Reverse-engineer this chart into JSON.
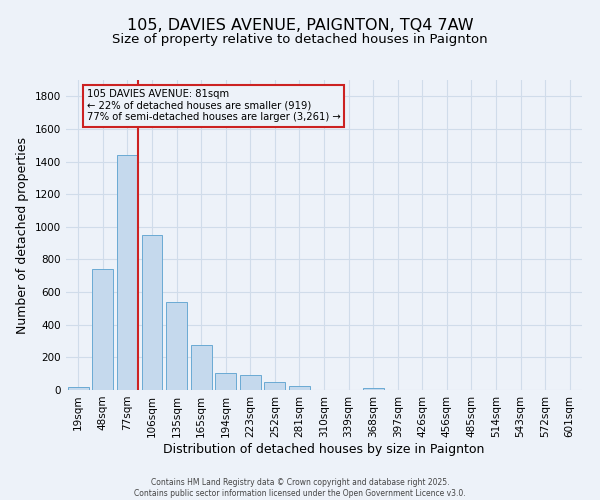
{
  "title": "105, DAVIES AVENUE, PAIGNTON, TQ4 7AW",
  "subtitle": "Size of property relative to detached houses in Paignton",
  "xlabel": "Distribution of detached houses by size in Paignton",
  "ylabel": "Number of detached properties",
  "categories": [
    "19sqm",
    "48sqm",
    "77sqm",
    "106sqm",
    "135sqm",
    "165sqm",
    "194sqm",
    "223sqm",
    "252sqm",
    "281sqm",
    "310sqm",
    "339sqm",
    "368sqm",
    "397sqm",
    "426sqm",
    "456sqm",
    "485sqm",
    "514sqm",
    "543sqm",
    "572sqm",
    "601sqm"
  ],
  "values": [
    20,
    740,
    1440,
    950,
    540,
    275,
    105,
    90,
    50,
    25,
    0,
    0,
    15,
    0,
    0,
    0,
    0,
    0,
    0,
    0,
    0
  ],
  "bar_color": "#c5d9ed",
  "bar_edge_color": "#6aaad4",
  "grid_color": "#d0dcea",
  "background_color": "#edf2f9",
  "red_line_index": 2,
  "annotation_title": "105 DAVIES AVENUE: 81sqm",
  "annotation_line1": "← 22% of detached houses are smaller (919)",
  "annotation_line2": "77% of semi-detached houses are larger (3,261) →",
  "annotation_box_edge": "#cc2222",
  "ylim": [
    0,
    1900
  ],
  "yticks": [
    0,
    200,
    400,
    600,
    800,
    1000,
    1200,
    1400,
    1600,
    1800
  ],
  "footer_line1": "Contains HM Land Registry data © Crown copyright and database right 2025.",
  "footer_line2": "Contains public sector information licensed under the Open Government Licence v3.0.",
  "title_fontsize": 11.5,
  "subtitle_fontsize": 9.5,
  "tick_fontsize": 7.5,
  "label_fontsize": 9,
  "footer_fontsize": 5.5
}
